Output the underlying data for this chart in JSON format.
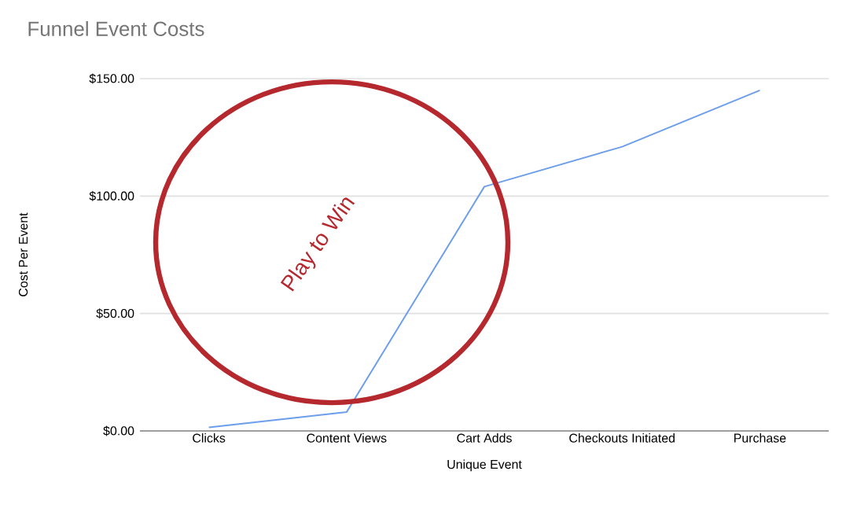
{
  "chart_data": {
    "type": "line",
    "title": "Funnel Event Costs",
    "xlabel": "Unique Event",
    "ylabel": "Cost Per Event",
    "categories": [
      "Clicks",
      "Content Views",
      "Cart Adds",
      "Checkouts Initiated",
      "Purchase"
    ],
    "series": [
      {
        "color": "#6d9eeb",
        "values": [
          1.5,
          8,
          104,
          121,
          145
        ]
      }
    ],
    "ylim": [
      0,
      150
    ],
    "yticks": [
      {
        "value": 0,
        "label": "$0.00"
      },
      {
        "value": 50,
        "label": "$50.00"
      },
      {
        "value": 100,
        "label": "$100.00"
      },
      {
        "value": 150,
        "label": "$150.00"
      }
    ],
    "grid": "y",
    "marker": "none",
    "line_style": "solid",
    "annotations": [
      "Play to Win"
    ]
  }
}
